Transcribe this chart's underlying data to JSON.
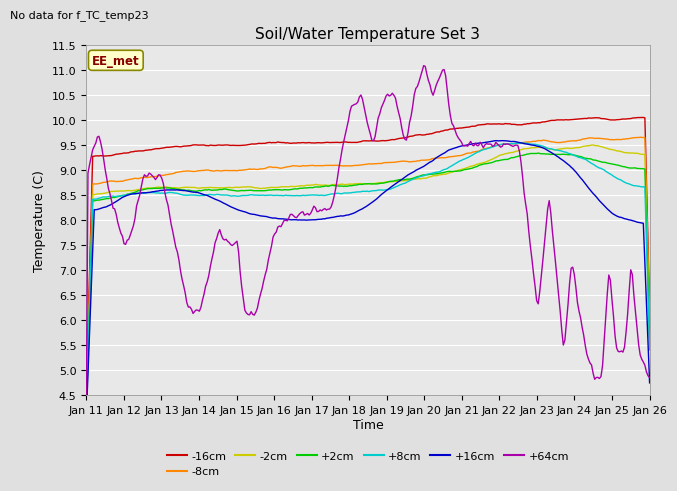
{
  "title": "Soil/Water Temperature Set 3",
  "xlabel": "Time",
  "ylabel": "Temperature (C)",
  "no_data_text": "No data for f_TC_temp23",
  "ee_met_label": "EE_met",
  "ylim": [
    4.5,
    11.5
  ],
  "yticks": [
    4.5,
    5.0,
    5.5,
    6.0,
    6.5,
    7.0,
    7.5,
    8.0,
    8.5,
    9.0,
    9.5,
    10.0,
    10.5,
    11.0,
    11.5
  ],
  "x_tick_labels": [
    "Jan 11",
    "Jan 12",
    "Jan 13",
    "Jan 14",
    "Jan 15",
    "Jan 16",
    "Jan 17",
    "Jan 18",
    "Jan 19",
    "Jan 20",
    "Jan 21",
    "Jan 22",
    "Jan 23",
    "Jan 24",
    "Jan 25",
    "Jan 26"
  ],
  "series": [
    {
      "label": "-16cm",
      "color": "#cc0000"
    },
    {
      "label": "-8cm",
      "color": "#ff8800"
    },
    {
      "label": "-2cm",
      "color": "#cccc00"
    },
    {
      "label": "+2cm",
      "color": "#00cc00"
    },
    {
      "label": "+8cm",
      "color": "#00cccc"
    },
    {
      "label": "+16cm",
      "color": "#0000cc"
    },
    {
      "label": "+64cm",
      "color": "#aa00aa"
    }
  ],
  "bg_color": "#e0e0e0",
  "plot_bg_color": "#e8e8e8",
  "grid_color": "#ffffff",
  "title_fontsize": 11,
  "axis_label_fontsize": 9,
  "tick_fontsize": 8,
  "legend_fontsize": 8
}
